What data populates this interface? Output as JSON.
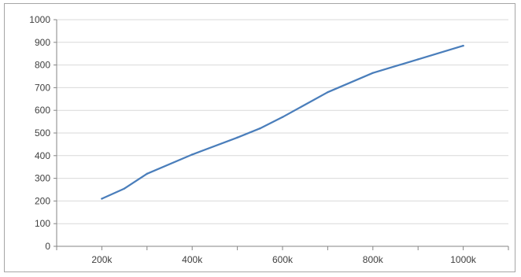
{
  "chart_data": {
    "type": "line",
    "title": "",
    "xlabel": "",
    "ylabel": "",
    "x_unit": "thousands",
    "x_ticks": [
      {
        "value": 200,
        "label": "200k"
      },
      {
        "value": 400,
        "label": "400k"
      },
      {
        "value": 600,
        "label": "600k"
      },
      {
        "value": 800,
        "label": "800k"
      },
      {
        "value": 1000,
        "label": "1000k"
      }
    ],
    "y_ticks": [
      0,
      100,
      200,
      300,
      400,
      500,
      600,
      700,
      800,
      900,
      1000
    ],
    "ylim": [
      0,
      1000
    ],
    "xlim": [
      100,
      1100
    ],
    "grid": {
      "horizontal": true,
      "vertical": false
    },
    "legend": "none",
    "series": [
      {
        "color": "#4a7ebb",
        "x": [
          200,
          250,
          300,
          400,
          500,
          550,
          600,
          700,
          800,
          900,
          1000
        ],
        "y": [
          210,
          255,
          320,
          405,
          480,
          520,
          570,
          680,
          765,
          825,
          885
        ]
      }
    ]
  }
}
